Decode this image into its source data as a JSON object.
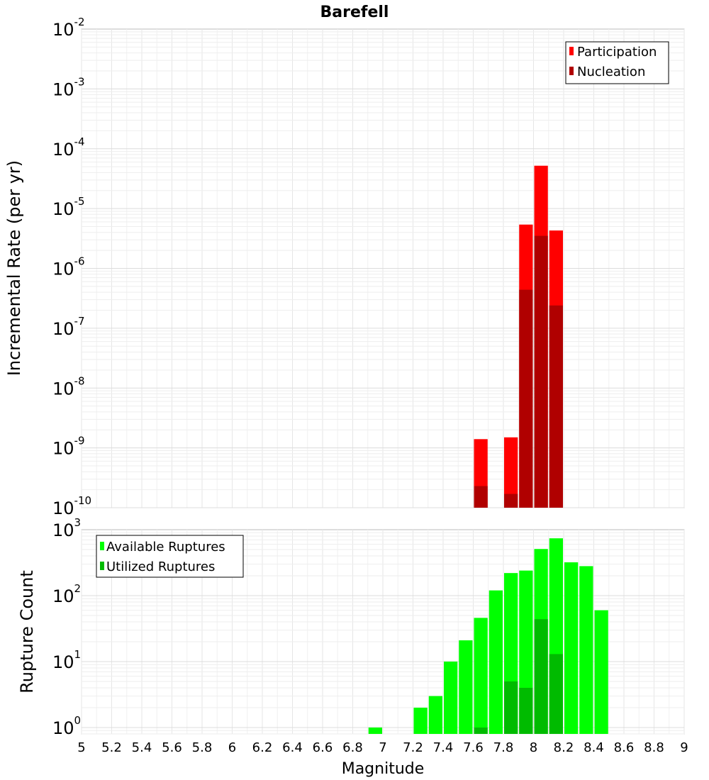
{
  "chart_data": [
    {
      "type": "bar",
      "title": "Barefell",
      "xlabel": "",
      "ylabel": "Incremental Rate (per yr)",
      "yscale": "log",
      "ylim": [
        1e-10,
        0.01
      ],
      "xlim": [
        5,
        9
      ],
      "ytick_base": "10",
      "ytick_exponents": [
        "-10",
        "-9",
        "-8",
        "-7",
        "-6",
        "-5",
        "-4",
        "-3",
        "-2"
      ],
      "legend_position": "top-right",
      "legend": [
        {
          "label": "Participation",
          "color": "#ff0000"
        },
        {
          "label": "Nucleation",
          "color": "#b00000"
        }
      ],
      "series": [
        {
          "name": "Participation",
          "color": "#ff0000",
          "x": [
            7.65,
            7.85,
            7.95,
            8.05,
            8.15
          ],
          "values": [
            1.4e-09,
            1.5e-09,
            5.4e-06,
            5.2e-05,
            4.3e-06
          ]
        },
        {
          "name": "Nucleation",
          "color": "#b00000",
          "x": [
            7.65,
            7.85,
            7.95,
            8.05,
            8.15
          ],
          "values": [
            2.3e-10,
            1.7e-10,
            4.4e-07,
            3.5e-06,
            2.4e-07
          ]
        }
      ]
    },
    {
      "type": "bar",
      "title": "",
      "xlabel": "Magnitude",
      "ylabel": "Rupture Count",
      "yscale": "log",
      "ylim": [
        0.8,
        1000
      ],
      "xlim": [
        5,
        9
      ],
      "ytick_base": "10",
      "ytick_exponents": [
        "0",
        "1",
        "2",
        "3"
      ],
      "xticks": [
        "5",
        "5.2",
        "5.4",
        "5.6",
        "5.8",
        "6",
        "6.2",
        "6.4",
        "6.6",
        "6.8",
        "7",
        "7.2",
        "7.4",
        "7.6",
        "7.8",
        "8",
        "8.2",
        "8.4",
        "8.6",
        "8.8",
        "9"
      ],
      "legend_position": "top-left",
      "legend": [
        {
          "label": "Available Ruptures",
          "color": "#00ff00"
        },
        {
          "label": "Utilized Ruptures",
          "color": "#00bb00"
        }
      ],
      "series": [
        {
          "name": "Available Ruptures",
          "color": "#00ff00",
          "x": [
            6.95,
            7.25,
            7.35,
            7.45,
            7.55,
            7.65,
            7.75,
            7.85,
            7.95,
            8.05,
            8.15,
            8.25,
            8.35,
            8.45
          ],
          "values": [
            1,
            2,
            3,
            10,
            21,
            46,
            120,
            220,
            240,
            510,
            740,
            320,
            280,
            60
          ]
        },
        {
          "name": "Utilized Ruptures",
          "color": "#00bb00",
          "x": [
            7.65,
            7.85,
            7.95,
            8.05,
            8.15
          ],
          "values": [
            1,
            5,
            4,
            44,
            13
          ]
        }
      ]
    }
  ]
}
